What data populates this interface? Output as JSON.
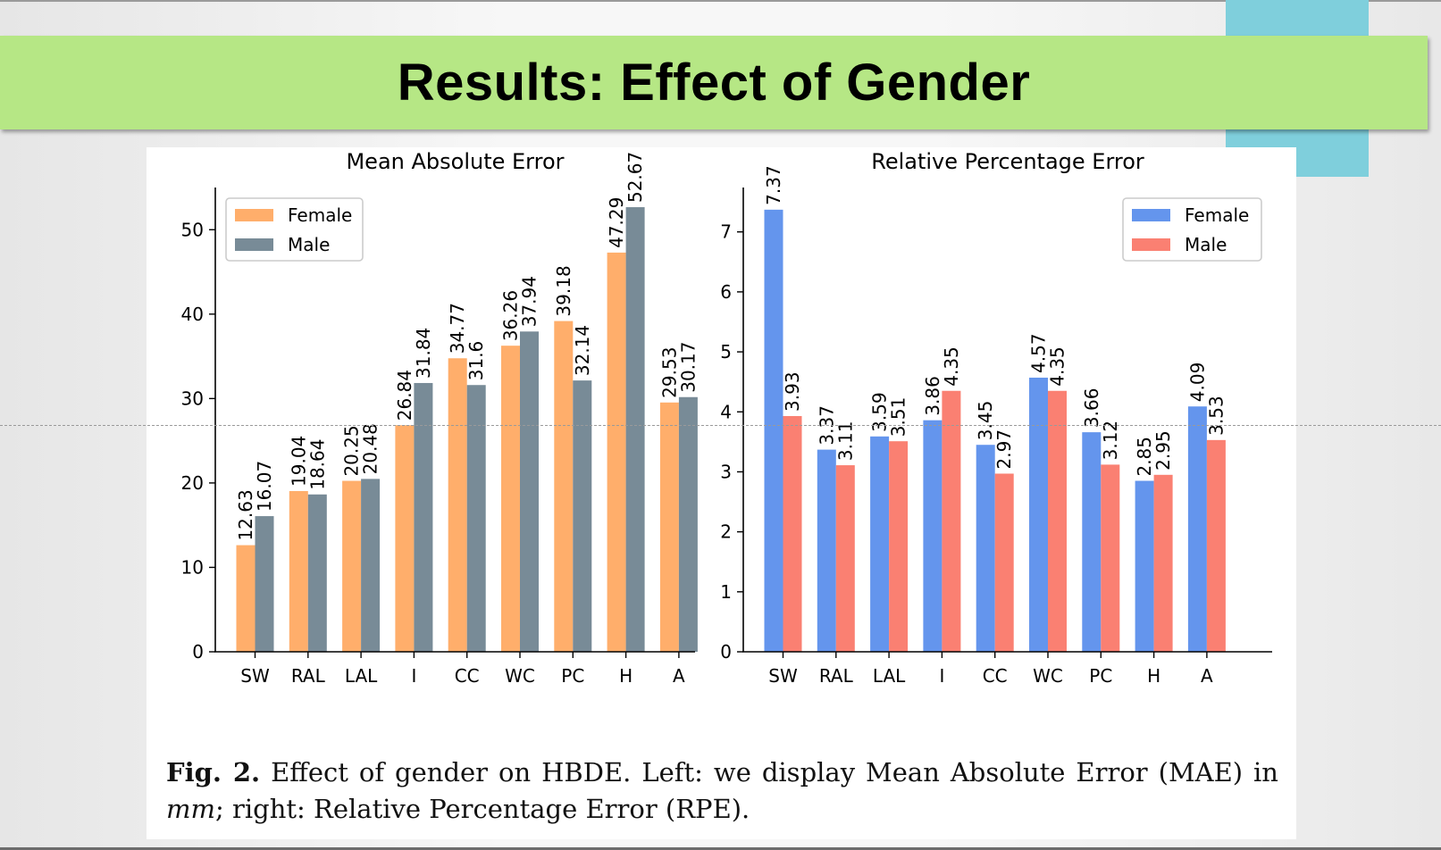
{
  "slide": {
    "title": "Results: Effect of Gender"
  },
  "caption": {
    "label": "Fig. 2.",
    "text1": " Effect of gender on HBDE. Left: we display Mean Absolute Error (MAE) in ",
    "unit": "mm",
    "text2": "; right: Relative Percentage Error (RPE)."
  },
  "colors": {
    "banner": "#b6e785",
    "teal_block": "#7fcfdc"
  },
  "chart_data": [
    {
      "type": "bar",
      "title": "Mean Absolute Error",
      "xlabel": "",
      "ylabel": "",
      "categories": [
        "SW",
        "RAL",
        "LAL",
        "I",
        "CC",
        "WC",
        "PC",
        "H",
        "A"
      ],
      "series": [
        {
          "name": "Female",
          "color": "#ffae6b",
          "values": [
            12.63,
            19.04,
            20.25,
            26.84,
            34.77,
            36.26,
            39.18,
            47.29,
            29.53
          ]
        },
        {
          "name": "Male",
          "color": "#788b97",
          "values": [
            16.07,
            18.64,
            20.48,
            31.84,
            31.6,
            37.94,
            32.14,
            52.67,
            30.17
          ]
        }
      ],
      "ylim": [
        0,
        55
      ],
      "yticks": [
        0,
        10,
        20,
        30,
        40,
        50
      ],
      "grid": false,
      "legend": "top-left",
      "value_labels": "vertical"
    },
    {
      "type": "bar",
      "title": "Relative Percentage Error",
      "xlabel": "",
      "ylabel": "",
      "categories": [
        "SW",
        "RAL",
        "LAL",
        "I",
        "CC",
        "WC",
        "PC",
        "H",
        "A"
      ],
      "series": [
        {
          "name": "Female",
          "color": "#6495ed",
          "values": [
            7.37,
            3.37,
            3.59,
            3.86,
            3.45,
            4.57,
            3.66,
            2.85,
            4.09
          ]
        },
        {
          "name": "Male",
          "color": "#fa8072",
          "values": [
            3.93,
            3.11,
            3.51,
            4.35,
            2.97,
            4.35,
            3.12,
            2.95,
            3.53
          ]
        }
      ],
      "ylim": [
        0,
        7.74
      ],
      "yticks": [
        0,
        1,
        2,
        3,
        4,
        5,
        6,
        7
      ],
      "grid": false,
      "legend": "top-right",
      "value_labels": "vertical"
    }
  ]
}
